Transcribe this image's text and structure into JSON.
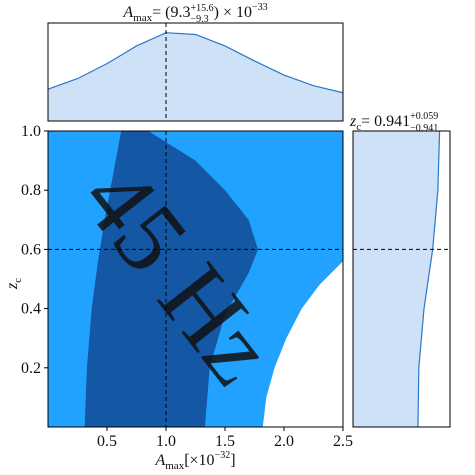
{
  "chart_data": {
    "type": "corner",
    "title": {
      "base": "A",
      "sub": "max",
      "eq": " = (9.3",
      "upper": "+15.6",
      "lower": "−9.3",
      "tail": ") × 10",
      "exp": "−33"
    },
    "side_title": {
      "base": "z",
      "sub": "c",
      "eq": " = 0.941",
      "upper": "+0.059",
      "lower": "−0.941"
    },
    "xlabel": {
      "base": "A",
      "sub": "max",
      "mid": " [×10",
      "exp": "−32",
      "end": "]"
    },
    "ylabel": {
      "base": "z",
      "sub": "c"
    },
    "watermark": "45 Hz",
    "background_color": "#22a2ff",
    "regions": [
      {
        "color": "#1458a5",
        "x": [
          0.31,
          0.33,
          0.37,
          0.42,
          0.48,
          0.55,
          0.62,
          0.85,
          1.25,
          1.5,
          1.7,
          1.78,
          1.7,
          1.5,
          1.37,
          1.33
        ],
        "y": [
          0,
          0.2,
          0.4,
          0.55,
          0.7,
          0.85,
          1.0,
          1.0,
          0.9,
          0.8,
          0.7,
          0.6,
          0.52,
          0.38,
          0.2,
          0
        ]
      },
      {
        "color": "#ffffff",
        "x": [
          1.82,
          1.85,
          1.92,
          2.02,
          2.15,
          2.3,
          2.5,
          2.5
        ],
        "y": [
          0,
          0.1,
          0.2,
          0.3,
          0.4,
          0.48,
          0.56,
          0
        ]
      }
    ],
    "xlim": [
      0,
      2.5
    ],
    "ylim": [
      0,
      1.0
    ],
    "xticks": [
      0.5,
      {
        "value": 1.0,
        "label": "1.0"
      },
      1.5,
      {
        "value": 2.0,
        "label": "2.0"
      },
      2.5
    ],
    "yticks": [
      0.2,
      0.4,
      0.6,
      0.8,
      {
        "value": 1.0,
        "label": "1.0"
      }
    ],
    "marker_x": 1.0,
    "marker_y": 0.6,
    "marginal_fill": "#cfe1f6",
    "marginal_line": "#2a77c9",
    "top_marginal": {
      "x": [
        0,
        0.25,
        0.5,
        0.75,
        1.0,
        1.25,
        1.5,
        1.75,
        2.0,
        2.25,
        2.5
      ],
      "density": [
        0.36,
        0.48,
        0.65,
        0.85,
        1.0,
        0.98,
        0.85,
        0.68,
        0.52,
        0.4,
        0.32
      ],
      "lim": [
        0,
        1.11
      ]
    },
    "side_marginal": {
      "z": [
        0,
        0.2,
        0.4,
        0.6,
        0.8,
        1.0
      ],
      "density": [
        0.75,
        0.76,
        0.82,
        0.92,
        0.98,
        1.0
      ],
      "lim": [
        0,
        1.12
      ]
    }
  }
}
